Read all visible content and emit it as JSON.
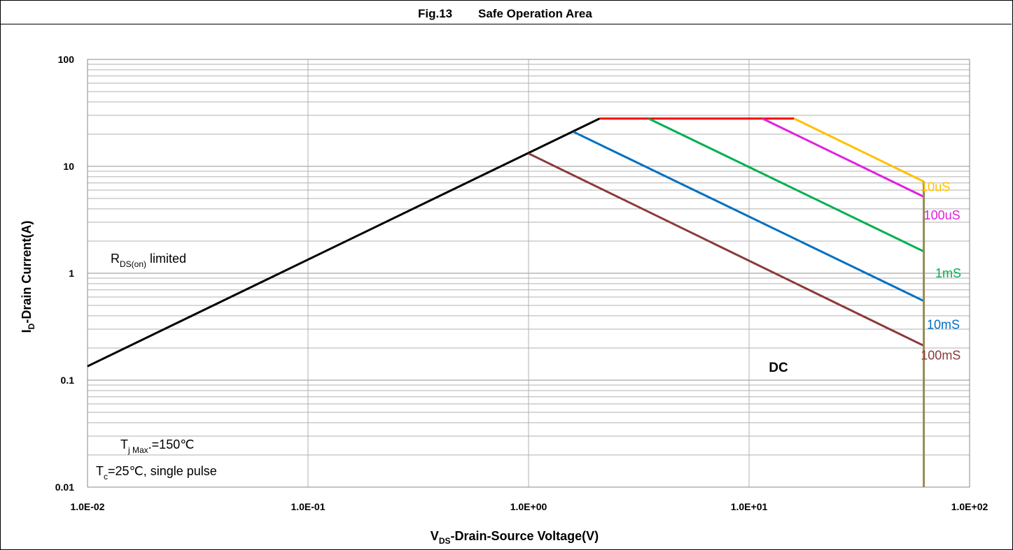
{
  "chart_data": {
    "type": "line",
    "title_fig": "Fig.13",
    "title": "Safe Operation Area",
    "xlabel_main": "V",
    "xlabel_sub": "DS",
    "xlabel_rest": "-Drain-Source Voltage(V)",
    "ylabel_main": "I",
    "ylabel_sub": "D",
    "ylabel_rest": "-Drain Current(A)",
    "x_scale": "log",
    "y_scale": "log",
    "xlim": [
      0.01,
      100
    ],
    "ylim": [
      0.01,
      100
    ],
    "grid": true,
    "x_ticks": [
      {
        "value": 0.01,
        "label": "1.0E-02"
      },
      {
        "value": 0.1,
        "label": "1.0E-01"
      },
      {
        "value": 1,
        "label": "1.0E+00"
      },
      {
        "value": 10,
        "label": "1.0E+01"
      },
      {
        "value": 100,
        "label": "1.0E+02"
      }
    ],
    "y_ticks": [
      {
        "value": 100,
        "label": "100"
      },
      {
        "value": 10,
        "label": "10"
      },
      {
        "value": 1,
        "label": "1"
      },
      {
        "value": 0.1,
        "label": "0.1"
      },
      {
        "value": 0.01,
        "label": "0.01"
      }
    ],
    "series": [
      {
        "name": "",
        "color": "#000000",
        "points": [
          [
            0.01,
            0.135
          ],
          [
            2.1,
            28
          ]
        ]
      },
      {
        "name": "",
        "color": "#ff0000",
        "points": [
          [
            2.1,
            28
          ],
          [
            16,
            28
          ]
        ]
      },
      {
        "name": "10uS",
        "color": "#ffc000",
        "points": [
          [
            16,
            28
          ],
          [
            62,
            7.2
          ]
        ]
      },
      {
        "name": "100uS",
        "color": "#e020e0",
        "points": [
          [
            11.5,
            28
          ],
          [
            62,
            5.2
          ]
        ]
      },
      {
        "name": "1mS",
        "color": "#00b050",
        "points": [
          [
            3.5,
            28
          ],
          [
            62,
            1.6
          ]
        ]
      },
      {
        "name": "10mS",
        "color": "#0070c0",
        "points": [
          [
            1.6,
            21
          ],
          [
            62,
            0.55
          ]
        ]
      },
      {
        "name": "100mS",
        "color": "#8b3a3a",
        "points": [
          [
            1.0,
            13.2
          ],
          [
            62,
            0.21
          ]
        ]
      },
      {
        "name": "",
        "color": "#948a54",
        "points": [
          [
            62,
            7.2
          ],
          [
            62,
            0.01
          ]
        ]
      }
    ],
    "curve_labels": [
      {
        "text": "10uS",
        "color": "#ffc000",
        "x": 70,
        "y": 6.4
      },
      {
        "text": "100uS",
        "color": "#e020e0",
        "x": 75,
        "y": 3.5
      },
      {
        "text": "1mS",
        "color": "#00b050",
        "x": 80,
        "y": 1.0
      },
      {
        "text": "10mS",
        "color": "#0070c0",
        "x": 76,
        "y": 0.33
      },
      {
        "text": "100mS",
        "color": "#8b3a3a",
        "x": 74,
        "y": 0.17
      }
    ],
    "annotations": {
      "rds_main": "R",
      "rds_sub": "DS(on)",
      "rds_rest": " limited",
      "tj_main": "T",
      "tj_sub": "j Max",
      "tj_rest": ".=150℃",
      "tc_main": "T",
      "tc_sub": "c",
      "tc_rest": "=25℃, single pulse",
      "dc_label": "DC"
    }
  }
}
